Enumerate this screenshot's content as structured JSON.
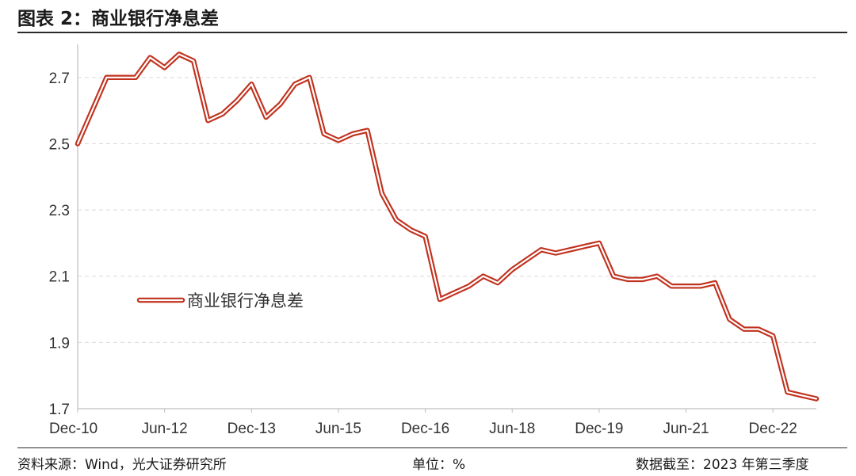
{
  "header": {
    "title": "图表 2：商业银行净息差"
  },
  "footer": {
    "source": "资料来源：Wind，光大证券研究所",
    "unit": "单位：%",
    "cutoff": "数据截至：2023 年第三季度"
  },
  "colors": {
    "series": "#c0321e",
    "grid": "#d9d9d9",
    "axis": "#bfbfbf"
  },
  "chart_data": {
    "type": "line",
    "title": "图表 2：商业银行净息差",
    "xlabel": "",
    "ylabel": "",
    "x": [
      "Dec-10",
      "Mar-11",
      "Jun-11",
      "Sep-11",
      "Dec-11",
      "Mar-12",
      "Jun-12",
      "Sep-12",
      "Dec-12",
      "Mar-13",
      "Jun-13",
      "Sep-13",
      "Dec-13",
      "Mar-14",
      "Jun-14",
      "Sep-14",
      "Dec-14",
      "Mar-15",
      "Jun-15",
      "Sep-15",
      "Dec-15",
      "Mar-16",
      "Jun-16",
      "Sep-16",
      "Dec-16",
      "Mar-17",
      "Jun-17",
      "Sep-17",
      "Dec-17",
      "Mar-18",
      "Jun-18",
      "Sep-18",
      "Dec-18",
      "Mar-19",
      "Jun-19",
      "Sep-19",
      "Dec-19",
      "Mar-20",
      "Jun-20",
      "Sep-20",
      "Dec-20",
      "Mar-21",
      "Jun-21",
      "Sep-21",
      "Dec-21",
      "Mar-22",
      "Jun-22",
      "Sep-22",
      "Dec-22",
      "Mar-23",
      "Jun-23",
      "Sep-23"
    ],
    "x_tick_labels": [
      "Dec-10",
      "Jun-12",
      "Dec-13",
      "Jun-15",
      "Dec-16",
      "Jun-18",
      "Dec-19",
      "Jun-21",
      "Dec-22"
    ],
    "x_tick_positions": [
      "Dec-10",
      "Jun-12",
      "Dec-13",
      "Jun-15",
      "Dec-16",
      "Jun-18",
      "Dec-19",
      "Jun-21",
      "Dec-22"
    ],
    "y_ticks": [
      "1.7",
      "1.9",
      "2.1",
      "2.3",
      "2.5",
      "2.7"
    ],
    "ylim": [
      1.7,
      2.8
    ],
    "grid": "horizontal",
    "legend": "center-left",
    "series": [
      {
        "name": "商业银行净息差",
        "values": [
          2.5,
          2.6,
          2.7,
          2.7,
          2.7,
          2.76,
          2.73,
          2.77,
          2.75,
          2.57,
          2.59,
          2.63,
          2.68,
          2.58,
          2.62,
          2.68,
          2.7,
          2.53,
          2.51,
          2.53,
          2.54,
          2.35,
          2.27,
          2.24,
          2.22,
          2.03,
          2.05,
          2.07,
          2.1,
          2.08,
          2.12,
          2.15,
          2.18,
          2.17,
          2.18,
          2.19,
          2.2,
          2.1,
          2.09,
          2.09,
          2.1,
          2.07,
          2.07,
          2.07,
          2.08,
          1.97,
          1.94,
          1.94,
          1.92,
          1.75,
          1.74,
          1.73
        ]
      }
    ]
  }
}
